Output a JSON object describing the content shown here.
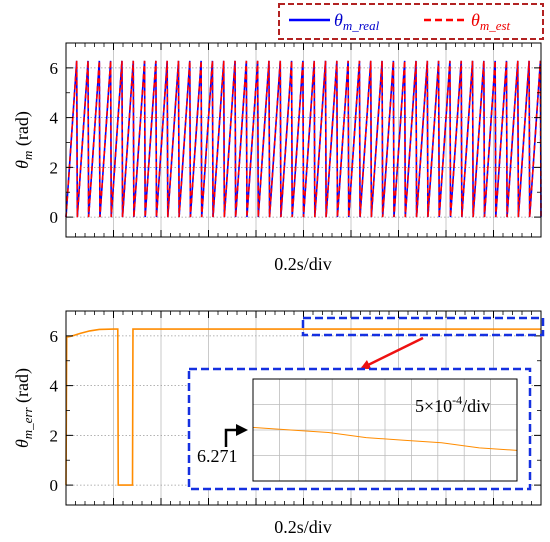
{
  "chart_data": [
    {
      "type": "line",
      "title": "",
      "xlabel": "0.2s/div",
      "ylabel": "θm (rad)",
      "ylabel_parts": {
        "symbol": "θ",
        "sub": "m",
        "unit": " (rad)"
      },
      "xlim": [
        0,
        2.0
      ],
      "ylim": [
        -0.8,
        7.0
      ],
      "yticks": [
        0,
        2,
        4,
        6
      ],
      "grid": true,
      "legend": "top-right, dashed red box",
      "legend_entries": [
        {
          "symbol": "θ",
          "sub": "m_real",
          "color": "#0000ff",
          "style": "solid"
        },
        {
          "symbol": "θ",
          "sub": "m_est",
          "color": "#ff0000",
          "style": "dashed"
        }
      ],
      "series": [
        {
          "key": "theta_m_real",
          "color": "#0000ff",
          "style": "solid",
          "waveform": "sawtooth",
          "min": 0,
          "max": 6.283,
          "cycles": 42
        },
        {
          "key": "theta_m_est",
          "color": "#ff0000",
          "style": "dashed",
          "waveform": "sawtooth",
          "min": 0,
          "max": 6.283,
          "cycles": 42
        }
      ]
    },
    {
      "type": "line",
      "title": "",
      "xlabel": "0.2s/div",
      "ylabel": "θm_err (rad)",
      "ylabel_parts": {
        "symbol": "θ",
        "sub": "m_err",
        "unit": " (rad)"
      },
      "xlim": [
        0,
        2.0
      ],
      "ylim": [
        -0.8,
        7.0
      ],
      "yticks": [
        0,
        2,
        4,
        6
      ],
      "grid": true,
      "series": [
        {
          "key": "theta_m_err",
          "color": "#ff8c00",
          "style": "solid",
          "x": [
            0.0,
            0.003,
            0.02,
            0.06,
            0.1,
            0.14,
            0.2,
            0.218,
            0.22,
            0.28,
            0.282,
            0.3,
            0.6,
            1.0,
            1.5,
            2.0
          ],
          "y": [
            0.0,
            5.95,
            5.98,
            6.1,
            6.2,
            6.26,
            6.275,
            6.275,
            0.0,
            0.0,
            6.275,
            6.273,
            6.273,
            6.272,
            6.272,
            6.271
          ]
        }
      ],
      "zoom_window": {
        "x": [
          1.04,
          2.0
        ],
        "y": [
          5.85,
          6.6
        ]
      },
      "inset": {
        "scale_label": {
          "prefix": "5×10",
          "exp": "-4",
          "suffix": "/div"
        },
        "marker_label": "6.271",
        "y_range": [
          6.2695,
          6.2735
        ],
        "series_y": [
          6.2716,
          6.2715,
          6.2714,
          6.2712,
          6.2711,
          6.271,
          6.2708,
          6.2707
        ]
      }
    }
  ]
}
